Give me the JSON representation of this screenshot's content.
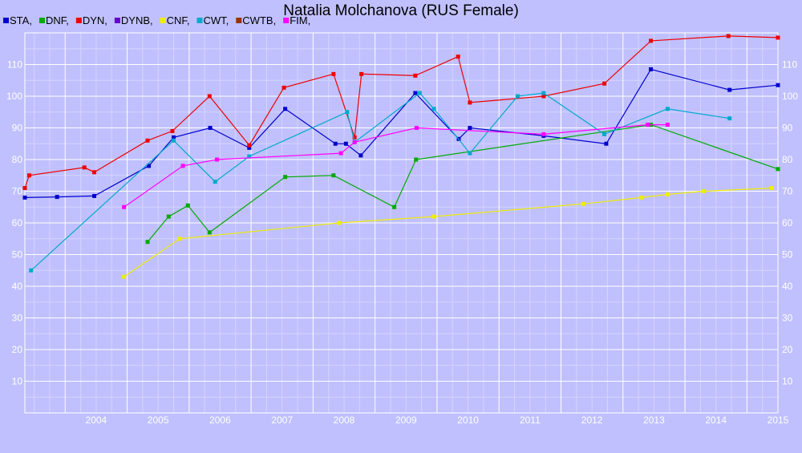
{
  "chart_data": {
    "type": "line",
    "title": "Natalia Molchanova (RUS Female)",
    "xlabel": "",
    "ylabel": "",
    "xlim": [
      2003.35,
      2015.5
    ],
    "ylim": [
      0,
      120
    ],
    "x_ticks": [
      "2004",
      "2005",
      "2006",
      "2007",
      "2008",
      "2009",
      "2010",
      "2011",
      "2012",
      "2013",
      "2014",
      "2015"
    ],
    "y_ticks": [
      "10",
      "20",
      "30",
      "40",
      "50",
      "60",
      "70",
      "80",
      "90",
      "100",
      "110"
    ],
    "grid": true,
    "legend_position": "top-left",
    "series": [
      {
        "name": "STA,",
        "color": "#0000cc",
        "points": [
          [
            2003.35,
            68
          ],
          [
            2003.87,
            68.2
          ],
          [
            2004.47,
            68.5
          ],
          [
            2005.35,
            78
          ],
          [
            2005.75,
            87
          ],
          [
            2006.34,
            90
          ],
          [
            2006.97,
            83.7
          ],
          [
            2007.55,
            96
          ],
          [
            2008.36,
            85
          ],
          [
            2008.53,
            85
          ],
          [
            2008.77,
            81.3
          ],
          [
            2009.65,
            101
          ],
          [
            2010.35,
            86.5
          ],
          [
            2010.53,
            90
          ],
          [
            2011.72,
            87.5
          ],
          [
            2012.73,
            85
          ],
          [
            2013.45,
            108.5
          ],
          [
            2014.72,
            102
          ],
          [
            2015.5,
            103.5
          ]
        ]
      },
      {
        "name": "DNF,",
        "color": "#00aa00",
        "points": [
          [
            2005.33,
            54
          ],
          [
            2005.67,
            62
          ],
          [
            2005.98,
            65.5
          ],
          [
            2006.33,
            57
          ],
          [
            2007.55,
            74.5
          ],
          [
            2008.33,
            75
          ],
          [
            2009.31,
            65
          ],
          [
            2009.66,
            80
          ],
          [
            2013.45,
            91
          ],
          [
            2015.5,
            77
          ]
        ]
      },
      {
        "name": "DYN,",
        "color": "#ee0000",
        "points": [
          [
            2003.35,
            71
          ],
          [
            2003.42,
            75
          ],
          [
            2004.31,
            77.5
          ],
          [
            2004.47,
            76
          ],
          [
            2005.33,
            86
          ],
          [
            2005.73,
            89
          ],
          [
            2006.33,
            100
          ],
          [
            2006.97,
            84.5
          ],
          [
            2007.53,
            102.7
          ],
          [
            2008.33,
            107
          ],
          [
            2008.67,
            87
          ],
          [
            2008.78,
            107
          ],
          [
            2009.65,
            106.5
          ],
          [
            2010.34,
            112.5
          ],
          [
            2010.53,
            98
          ],
          [
            2011.72,
            100
          ],
          [
            2012.7,
            104
          ],
          [
            2013.45,
            117.5
          ],
          [
            2014.7,
            119
          ],
          [
            2015.5,
            118.5
          ]
        ]
      },
      {
        "name": "DYNB,",
        "color": "#6600cc",
        "points": []
      },
      {
        "name": "CNF,",
        "color": "#eeee00",
        "points": [
          [
            2004.95,
            43
          ],
          [
            2005.85,
            55
          ],
          [
            2008.42,
            60
          ],
          [
            2009.95,
            62
          ],
          [
            2012.36,
            66
          ],
          [
            2013.3,
            68
          ],
          [
            2013.72,
            69
          ],
          [
            2014.3,
            70
          ],
          [
            2015.4,
            71
          ]
        ]
      },
      {
        "name": "CWT,",
        "color": "#00aacc",
        "points": [
          [
            2003.45,
            45
          ],
          [
            2005.75,
            86
          ],
          [
            2006.42,
            73
          ],
          [
            2006.97,
            81
          ],
          [
            2008.55,
            95
          ],
          [
            2008.67,
            85.5
          ],
          [
            2009.72,
            101
          ],
          [
            2009.95,
            96
          ],
          [
            2010.53,
            82
          ],
          [
            2011.3,
            100
          ],
          [
            2011.72,
            101
          ],
          [
            2012.7,
            88
          ],
          [
            2013.72,
            96
          ],
          [
            2014.72,
            93
          ]
        ]
      },
      {
        "name": "CWTB,",
        "color": "#993300",
        "points": []
      },
      {
        "name": "FIM,",
        "color": "#ff00ff",
        "points": [
          [
            2004.95,
            65
          ],
          [
            2005.9,
            78
          ],
          [
            2006.45,
            80
          ],
          [
            2008.45,
            82
          ],
          [
            2008.67,
            85.5
          ],
          [
            2009.67,
            90
          ],
          [
            2011.72,
            88
          ],
          [
            2013.4,
            91
          ],
          [
            2013.72,
            91
          ]
        ]
      }
    ]
  }
}
